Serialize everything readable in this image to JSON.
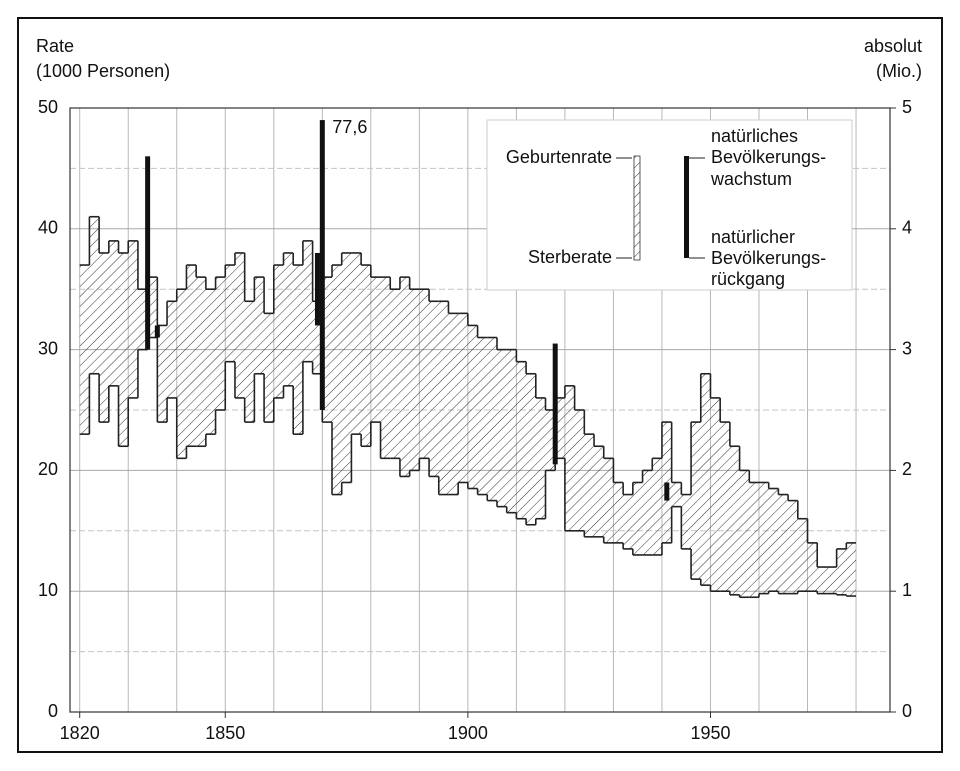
{
  "chart_data": {
    "type": "line",
    "ylabel": [
      "Rate",
      "(1000 Personen)"
    ],
    "y2label": [
      "absolut",
      "(Mio.)"
    ],
    "x": [
      1820,
      1822,
      1824,
      1826,
      1828,
      1830,
      1832,
      1834,
      1836,
      1838,
      1840,
      1842,
      1844,
      1846,
      1848,
      1850,
      1852,
      1854,
      1856,
      1858,
      1860,
      1862,
      1864,
      1866,
      1868,
      1870,
      1872,
      1874,
      1876,
      1878,
      1880,
      1882,
      1884,
      1886,
      1888,
      1890,
      1892,
      1894,
      1896,
      1898,
      1900,
      1902,
      1904,
      1906,
      1908,
      1910,
      1912,
      1914,
      1916,
      1918,
      1920,
      1922,
      1924,
      1926,
      1928,
      1930,
      1932,
      1934,
      1936,
      1938,
      1940,
      1942,
      1944,
      1946,
      1948,
      1950,
      1952,
      1954,
      1956,
      1958,
      1960,
      1962,
      1964,
      1966,
      1968,
      1970,
      1972,
      1974,
      1976,
      1978
    ],
    "series": [
      {
        "name": "Geburtenrate",
        "color": "#222222",
        "values": [
          37,
          41,
          38,
          39,
          38,
          39,
          35,
          36,
          32,
          34,
          35,
          37,
          36,
          35,
          36,
          37,
          38,
          34,
          36,
          33,
          37,
          38,
          37,
          39,
          34,
          36,
          37,
          38,
          38,
          37,
          36,
          36,
          35,
          36,
          35,
          35,
          34,
          34,
          33,
          33,
          32,
          31,
          31,
          30,
          30,
          29,
          28,
          26,
          25,
          26,
          27,
          25,
          23,
          22,
          21,
          19,
          18,
          19,
          20,
          21,
          24,
          19,
          18,
          24,
          28,
          26,
          24,
          22,
          20,
          19,
          19,
          18.5,
          18,
          17.5,
          16,
          14,
          12,
          12,
          13.5,
          14
        ]
      },
      {
        "name": "Sterberate",
        "color": "#222222",
        "values": [
          23,
          28,
          24,
          27,
          22,
          26,
          30,
          31,
          24,
          26,
          21,
          22,
          22,
          23,
          25,
          29,
          26,
          24,
          28,
          24,
          26,
          27,
          23,
          29,
          28,
          24,
          18,
          19,
          23,
          22,
          24,
          21,
          21,
          19.5,
          20,
          21,
          19.5,
          18,
          18,
          19,
          18.5,
          18,
          17.5,
          17,
          16.5,
          16,
          15.5,
          16,
          20,
          21,
          15,
          15,
          14.5,
          14.5,
          14,
          14,
          13.5,
          13,
          13,
          13,
          14,
          17,
          13.5,
          11,
          10.5,
          10,
          10,
          9.7,
          9.5,
          9.5,
          9.8,
          10,
          9.8,
          9.8,
          10,
          10,
          9.8,
          9.8,
          9.7,
          9.6
        ]
      }
    ],
    "bars": [
      {
        "x": 1834,
        "low": 3.0,
        "high": 4.6,
        "axis": "y2"
      },
      {
        "x": 1836,
        "low": 3.1,
        "high": 3.2,
        "axis": "y2"
      },
      {
        "x": 1869,
        "low": 3.2,
        "high": 3.8,
        "axis": "y2"
      },
      {
        "x": 1870,
        "low": 2.5,
        "high": 4.9,
        "axis": "y2"
      },
      {
        "x": 1918,
        "low": 2.05,
        "high": 3.05,
        "axis": "y2"
      },
      {
        "x": 1941,
        "low": 1.75,
        "high": 1.9,
        "axis": "y2"
      }
    ],
    "annotation": "77,6",
    "legend_growth": [
      "natürliches",
      "Bevölkerungs-",
      "wachstum"
    ],
    "legend_decline": [
      "natürlicher",
      "Bevölkerungs-",
      "rückgang"
    ],
    "xlim": [
      1818,
      1987
    ],
    "xticks": [
      1820,
      1850,
      1900,
      1950
    ],
    "xgrid": [
      1820,
      1830,
      1840,
      1850,
      1860,
      1870,
      1880,
      1890,
      1900,
      1910,
      1920,
      1930,
      1940,
      1950,
      1960,
      1970,
      1980
    ],
    "ylim": [
      0,
      50
    ],
    "yticks": [
      0,
      10,
      20,
      30,
      40,
      50
    ],
    "yminor": [
      5,
      15,
      25,
      35,
      45
    ],
    "y2lim": [
      0,
      5
    ],
    "y2ticks": [
      0,
      1,
      2,
      3,
      4,
      5
    ],
    "grid": true
  }
}
